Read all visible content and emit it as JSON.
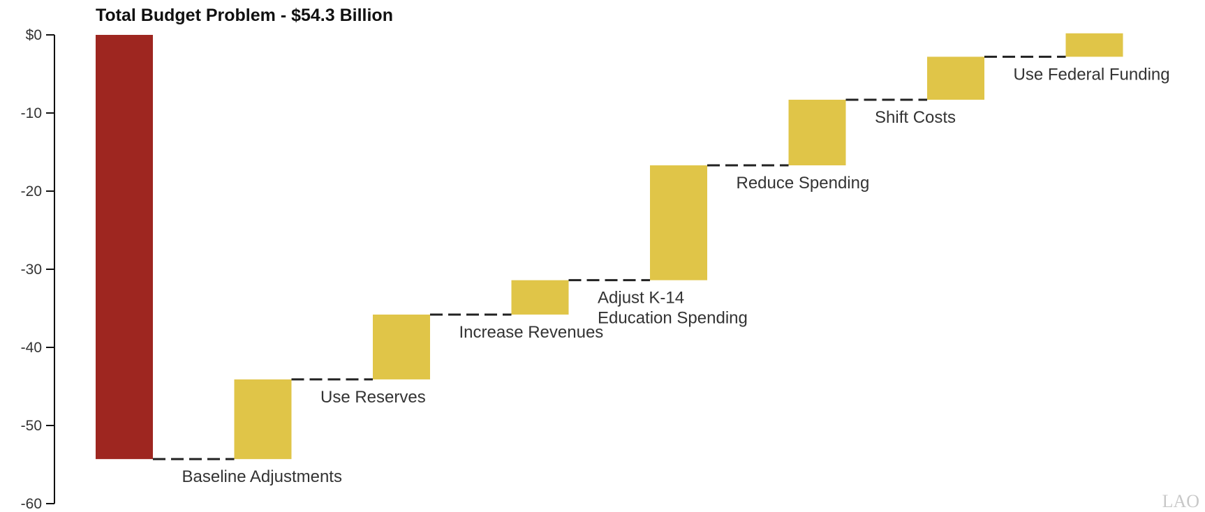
{
  "chart_data": {
    "type": "bar",
    "subtype": "waterfall",
    "title": "Total Budget Problem - $54.3 Billion",
    "xlabel": "",
    "ylabel": "",
    "ylim": [
      -60,
      0
    ],
    "yticks": [
      0,
      -10,
      -20,
      -30,
      -40,
      -50,
      -60
    ],
    "ytick_labels": [
      "$0",
      "-10",
      "-20",
      "-30",
      "-40",
      "-50",
      "-60"
    ],
    "grid": false,
    "legend": "none",
    "colors": {
      "total": "#9e2620",
      "step": "#e0c548"
    },
    "bars": [
      {
        "label": "",
        "kind": "total",
        "from": 0,
        "to": -54.3
      },
      {
        "label": "Baseline Adjustments",
        "kind": "step",
        "from": -54.3,
        "to": -44.1
      },
      {
        "label": "Use Reserves",
        "kind": "step",
        "from": -44.1,
        "to": -35.8
      },
      {
        "label": "Increase Revenues",
        "kind": "step",
        "from": -35.8,
        "to": -31.4
      },
      {
        "label": "Adjust K-14\nEducation Spending",
        "kind": "step",
        "from": -31.4,
        "to": -16.7
      },
      {
        "label": "Reduce Spending",
        "kind": "step",
        "from": -16.7,
        "to": -8.3
      },
      {
        "label": "Shift Costs",
        "kind": "step",
        "from": -8.3,
        "to": -2.8
      },
      {
        "label": "Use Federal Funding",
        "kind": "step",
        "from": -2.8,
        "to": 0.2
      }
    ]
  },
  "logo_text": "LAO"
}
